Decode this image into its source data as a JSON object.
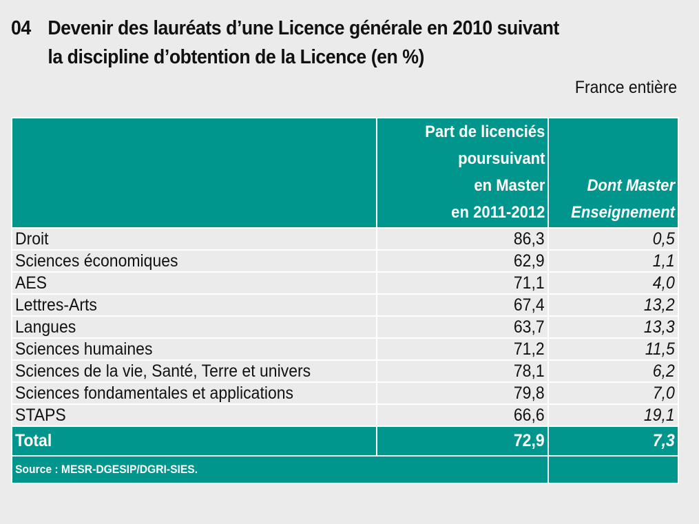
{
  "title": {
    "number": "04",
    "line1": "Devenir des lauréats d’une Licence générale en 2010 suivant",
    "line2": "la discipline d’obtention de la Licence (en %)"
  },
  "scope": "France entière",
  "table": {
    "headers": {
      "col1": "",
      "col2_lines": [
        "Part de licenciés",
        "poursuivant",
        "en Master",
        "en 2011-2012"
      ],
      "col3_lines": [
        "Dont Master",
        "Enseignement"
      ]
    },
    "rows": [
      {
        "label": "Droit",
        "master": "86,3",
        "enseignement": "0,5"
      },
      {
        "label": "Sciences économiques",
        "master": "62,9",
        "enseignement": "1,1"
      },
      {
        "label": "AES",
        "master": "71,1",
        "enseignement": "4,0"
      },
      {
        "label": "Lettres-Arts",
        "master": "67,4",
        "enseignement": "13,2"
      },
      {
        "label": "Langues",
        "master": "63,7",
        "enseignement": "13,3"
      },
      {
        "label": "Sciences humaines",
        "master": "71,2",
        "enseignement": "11,5"
      },
      {
        "label": "Sciences de la vie, Santé, Terre et univers",
        "master": "78,1",
        "enseignement": "6,2"
      },
      {
        "label": "Sciences fondamentales et applications",
        "master": "79,8",
        "enseignement": "7,0"
      },
      {
        "label": "STAPS",
        "master": "66,6",
        "enseignement": "19,1"
      }
    ],
    "total": {
      "label": "Total",
      "master": "72,9",
      "enseignement": "7,3"
    },
    "source": "Source : MESR-DGESIP/DGRI-SIES."
  },
  "colors": {
    "teal": "#00968e",
    "background": "#ebebeb",
    "border": "#ffffff"
  }
}
